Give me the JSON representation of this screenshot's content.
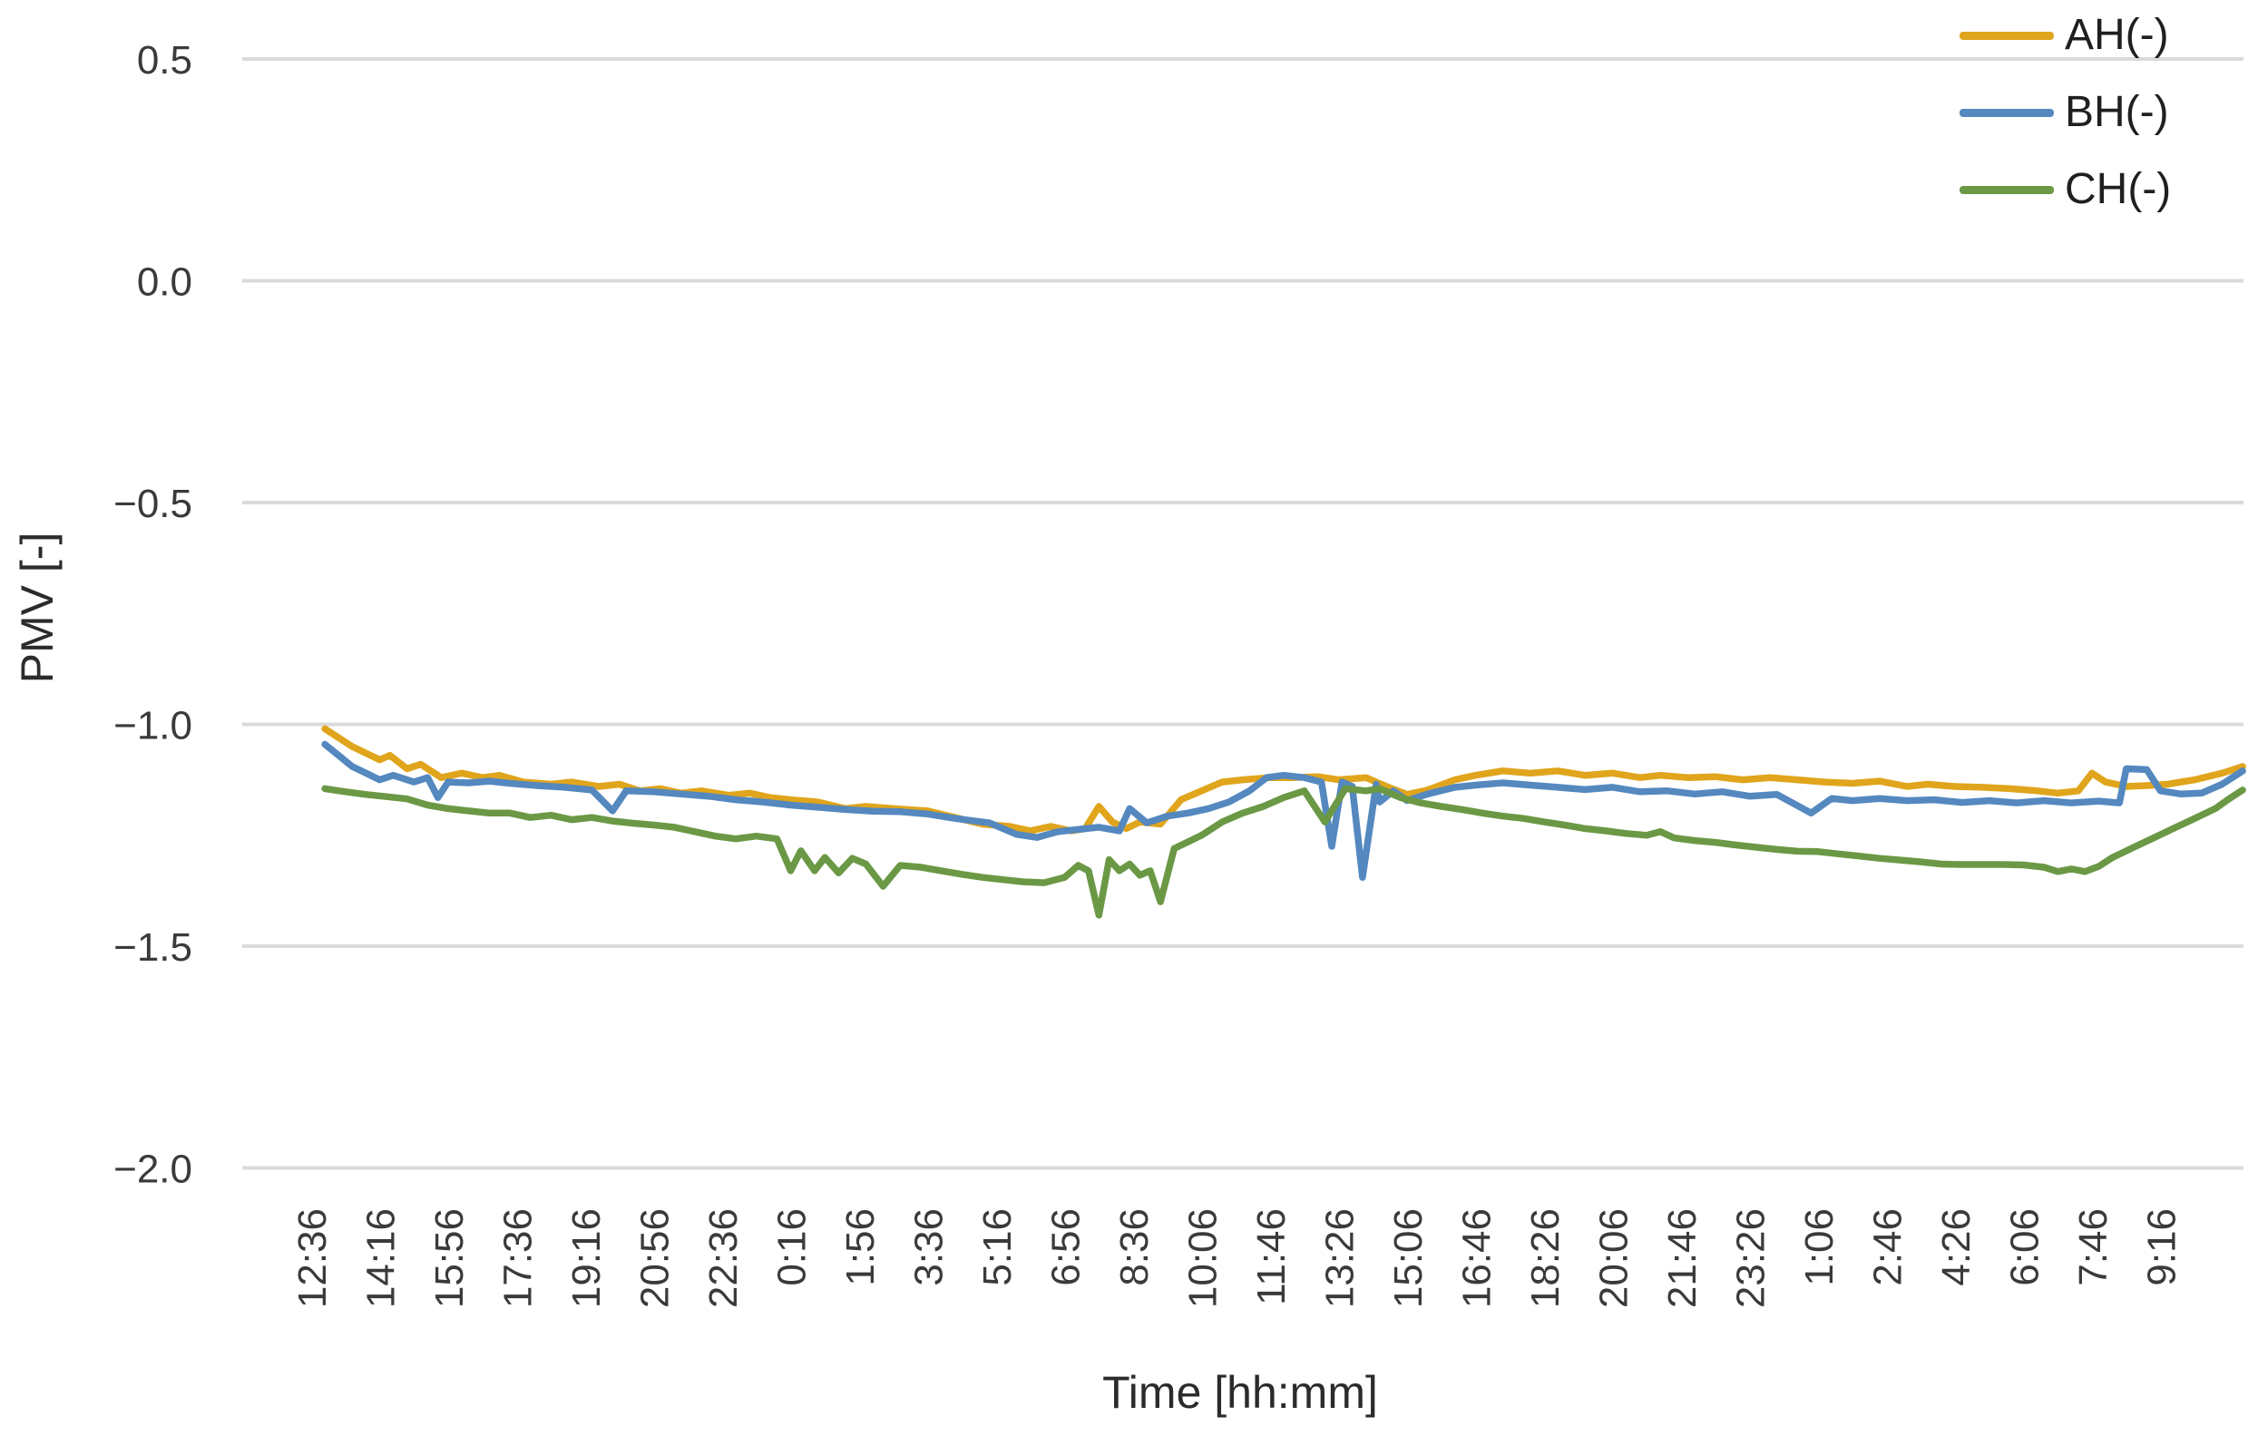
{
  "chart_data": {
    "type": "line",
    "title": "",
    "xlabel": "Time [hh:mm]",
    "ylabel": "PMV [-]",
    "ylim": [
      -2.0,
      0.5
    ],
    "grid": "horizontal-only",
    "gridline_color": "#DADADA",
    "legend_position": "top-right",
    "yticks": [
      {
        "value": 0.5,
        "label": "0.5"
      },
      {
        "value": 0.0,
        "label": "0.0"
      },
      {
        "value": -0.5,
        "label": "−0.5"
      },
      {
        "value": -1.0,
        "label": "−1.0"
      },
      {
        "value": -1.5,
        "label": "−1.5"
      },
      {
        "value": -2.0,
        "label": "−2.0"
      }
    ],
    "categories": [
      "12:36",
      "14:16",
      "15:56",
      "17:36",
      "19:16",
      "20:56",
      "22:36",
      "0:16",
      "1:56",
      "3:36",
      "5:16",
      "6:56",
      "8:36",
      "10:06",
      "11:46",
      "13:26",
      "15:06",
      "16:46",
      "18:26",
      "20:06",
      "21:46",
      "23:26",
      "1:06",
      "2:46",
      "4:26",
      "6:06",
      "7:46",
      "9:16"
    ],
    "series": [
      {
        "name": "AH(-)",
        "color": "#E0A51C",
        "points": [
          [
            0.2,
            -1.01
          ],
          [
            0.4,
            -1.03
          ],
          [
            0.6,
            -1.05
          ],
          [
            0.8,
            -1.065
          ],
          [
            1.0,
            -1.08
          ],
          [
            1.15,
            -1.07
          ],
          [
            1.4,
            -1.1
          ],
          [
            1.6,
            -1.09
          ],
          [
            1.9,
            -1.12
          ],
          [
            2.2,
            -1.11
          ],
          [
            2.5,
            -1.12
          ],
          [
            2.75,
            -1.115
          ],
          [
            3.1,
            -1.13
          ],
          [
            3.5,
            -1.135
          ],
          [
            3.8,
            -1.13
          ],
          [
            4.2,
            -1.14
          ],
          [
            4.5,
            -1.135
          ],
          [
            4.8,
            -1.15
          ],
          [
            5.1,
            -1.145
          ],
          [
            5.4,
            -1.155
          ],
          [
            5.7,
            -1.15
          ],
          [
            6.1,
            -1.16
          ],
          [
            6.4,
            -1.155
          ],
          [
            6.7,
            -1.165
          ],
          [
            7.0,
            -1.17
          ],
          [
            7.4,
            -1.175
          ],
          [
            7.8,
            -1.19
          ],
          [
            8.1,
            -1.185
          ],
          [
            8.5,
            -1.19
          ],
          [
            9.0,
            -1.195
          ],
          [
            9.4,
            -1.21
          ],
          [
            9.8,
            -1.225
          ],
          [
            10.2,
            -1.23
          ],
          [
            10.5,
            -1.24
          ],
          [
            10.8,
            -1.23
          ],
          [
            11.1,
            -1.24
          ],
          [
            11.3,
            -1.235
          ],
          [
            11.5,
            -1.185
          ],
          [
            11.7,
            -1.22
          ],
          [
            11.9,
            -1.235
          ],
          [
            12.1,
            -1.22
          ],
          [
            12.4,
            -1.225
          ],
          [
            12.7,
            -1.17
          ],
          [
            13.0,
            -1.15
          ],
          [
            13.3,
            -1.13
          ],
          [
            13.6,
            -1.125
          ],
          [
            14.0,
            -1.12
          ],
          [
            14.3,
            -1.12
          ],
          [
            14.7,
            -1.118
          ],
          [
            15.0,
            -1.125
          ],
          [
            15.4,
            -1.12
          ],
          [
            15.7,
            -1.14
          ],
          [
            16.0,
            -1.158
          ],
          [
            16.3,
            -1.148
          ],
          [
            16.7,
            -1.125
          ],
          [
            17.0,
            -1.115
          ],
          [
            17.4,
            -1.105
          ],
          [
            17.8,
            -1.11
          ],
          [
            18.2,
            -1.105
          ],
          [
            18.6,
            -1.115
          ],
          [
            19.0,
            -1.11
          ],
          [
            19.4,
            -1.12
          ],
          [
            19.7,
            -1.115
          ],
          [
            20.1,
            -1.12
          ],
          [
            20.5,
            -1.118
          ],
          [
            20.9,
            -1.125
          ],
          [
            21.3,
            -1.12
          ],
          [
            21.7,
            -1.125
          ],
          [
            22.1,
            -1.13
          ],
          [
            22.5,
            -1.133
          ],
          [
            22.9,
            -1.128
          ],
          [
            23.3,
            -1.14
          ],
          [
            23.6,
            -1.135
          ],
          [
            24.0,
            -1.14
          ],
          [
            24.4,
            -1.142
          ],
          [
            24.8,
            -1.145
          ],
          [
            25.2,
            -1.15
          ],
          [
            25.5,
            -1.155
          ],
          [
            25.8,
            -1.15
          ],
          [
            26.0,
            -1.11
          ],
          [
            26.2,
            -1.13
          ],
          [
            26.5,
            -1.14
          ],
          [
            26.8,
            -1.138
          ],
          [
            27.1,
            -1.135
          ],
          [
            27.5,
            -1.125
          ],
          [
            27.9,
            -1.11
          ],
          [
            28.2,
            -1.095
          ]
        ]
      },
      {
        "name": "BH(-)",
        "color": "#5488BF",
        "points": [
          [
            0.2,
            -1.045
          ],
          [
            0.4,
            -1.07
          ],
          [
            0.6,
            -1.095
          ],
          [
            0.8,
            -1.11
          ],
          [
            1.0,
            -1.125
          ],
          [
            1.2,
            -1.115
          ],
          [
            1.5,
            -1.13
          ],
          [
            1.7,
            -1.12
          ],
          [
            1.85,
            -1.165
          ],
          [
            2.0,
            -1.13
          ],
          [
            2.3,
            -1.132
          ],
          [
            2.6,
            -1.128
          ],
          [
            2.9,
            -1.133
          ],
          [
            3.3,
            -1.138
          ],
          [
            3.7,
            -1.142
          ],
          [
            4.1,
            -1.148
          ],
          [
            4.4,
            -1.195
          ],
          [
            4.6,
            -1.15
          ],
          [
            5.0,
            -1.152
          ],
          [
            5.4,
            -1.157
          ],
          [
            5.8,
            -1.162
          ],
          [
            6.2,
            -1.17
          ],
          [
            6.6,
            -1.175
          ],
          [
            7.0,
            -1.182
          ],
          [
            7.4,
            -1.187
          ],
          [
            7.8,
            -1.192
          ],
          [
            8.2,
            -1.196
          ],
          [
            8.6,
            -1.197
          ],
          [
            9.0,
            -1.202
          ],
          [
            9.4,
            -1.212
          ],
          [
            9.9,
            -1.222
          ],
          [
            10.3,
            -1.248
          ],
          [
            10.6,
            -1.255
          ],
          [
            10.9,
            -1.242
          ],
          [
            11.2,
            -1.237
          ],
          [
            11.5,
            -1.232
          ],
          [
            11.8,
            -1.24
          ],
          [
            11.95,
            -1.19
          ],
          [
            12.2,
            -1.222
          ],
          [
            12.5,
            -1.207
          ],
          [
            12.8,
            -1.2
          ],
          [
            13.1,
            -1.19
          ],
          [
            13.4,
            -1.175
          ],
          [
            13.7,
            -1.15
          ],
          [
            13.95,
            -1.12
          ],
          [
            14.2,
            -1.115
          ],
          [
            14.5,
            -1.12
          ],
          [
            14.75,
            -1.13
          ],
          [
            14.9,
            -1.275
          ],
          [
            15.05,
            -1.13
          ],
          [
            15.2,
            -1.14
          ],
          [
            15.35,
            -1.345
          ],
          [
            15.55,
            -1.135
          ],
          [
            15.6,
            -1.175
          ],
          [
            15.8,
            -1.15
          ],
          [
            16.0,
            -1.172
          ],
          [
            16.3,
            -1.157
          ],
          [
            16.7,
            -1.142
          ],
          [
            17.0,
            -1.137
          ],
          [
            17.4,
            -1.132
          ],
          [
            17.8,
            -1.137
          ],
          [
            18.2,
            -1.142
          ],
          [
            18.6,
            -1.147
          ],
          [
            19.0,
            -1.142
          ],
          [
            19.4,
            -1.152
          ],
          [
            19.8,
            -1.15
          ],
          [
            20.2,
            -1.157
          ],
          [
            20.6,
            -1.152
          ],
          [
            21.0,
            -1.162
          ],
          [
            21.4,
            -1.158
          ],
          [
            21.9,
            -1.2
          ],
          [
            22.2,
            -1.167
          ],
          [
            22.5,
            -1.172
          ],
          [
            22.9,
            -1.167
          ],
          [
            23.3,
            -1.172
          ],
          [
            23.7,
            -1.17
          ],
          [
            24.1,
            -1.176
          ],
          [
            24.5,
            -1.172
          ],
          [
            24.9,
            -1.177
          ],
          [
            25.3,
            -1.172
          ],
          [
            25.7,
            -1.177
          ],
          [
            26.1,
            -1.173
          ],
          [
            26.4,
            -1.177
          ],
          [
            26.5,
            -1.1
          ],
          [
            26.8,
            -1.102
          ],
          [
            27.0,
            -1.15
          ],
          [
            27.3,
            -1.157
          ],
          [
            27.6,
            -1.155
          ],
          [
            27.9,
            -1.135
          ],
          [
            28.1,
            -1.115
          ],
          [
            28.2,
            -1.105
          ]
        ]
      },
      {
        "name": "CH(-)",
        "color": "#6B9845",
        "points": [
          [
            0.2,
            -1.145
          ],
          [
            0.5,
            -1.152
          ],
          [
            0.8,
            -1.158
          ],
          [
            1.1,
            -1.163
          ],
          [
            1.4,
            -1.168
          ],
          [
            1.7,
            -1.182
          ],
          [
            2.0,
            -1.19
          ],
          [
            2.3,
            -1.195
          ],
          [
            2.6,
            -1.2
          ],
          [
            2.9,
            -1.2
          ],
          [
            3.2,
            -1.21
          ],
          [
            3.5,
            -1.205
          ],
          [
            3.8,
            -1.215
          ],
          [
            4.1,
            -1.21
          ],
          [
            4.4,
            -1.218
          ],
          [
            4.7,
            -1.223
          ],
          [
            5.0,
            -1.227
          ],
          [
            5.3,
            -1.232
          ],
          [
            5.6,
            -1.242
          ],
          [
            5.9,
            -1.252
          ],
          [
            6.2,
            -1.258
          ],
          [
            6.5,
            -1.252
          ],
          [
            6.8,
            -1.258
          ],
          [
            7.0,
            -1.33
          ],
          [
            7.15,
            -1.285
          ],
          [
            7.35,
            -1.33
          ],
          [
            7.5,
            -1.3
          ],
          [
            7.7,
            -1.335
          ],
          [
            7.9,
            -1.302
          ],
          [
            8.1,
            -1.315
          ],
          [
            8.35,
            -1.365
          ],
          [
            8.6,
            -1.318
          ],
          [
            8.9,
            -1.322
          ],
          [
            9.2,
            -1.33
          ],
          [
            9.5,
            -1.338
          ],
          [
            9.8,
            -1.345
          ],
          [
            10.1,
            -1.35
          ],
          [
            10.4,
            -1.355
          ],
          [
            10.7,
            -1.357
          ],
          [
            11.0,
            -1.345
          ],
          [
            11.2,
            -1.318
          ],
          [
            11.35,
            -1.33
          ],
          [
            11.5,
            -1.43
          ],
          [
            11.65,
            -1.305
          ],
          [
            11.8,
            -1.33
          ],
          [
            11.95,
            -1.315
          ],
          [
            12.1,
            -1.34
          ],
          [
            12.25,
            -1.33
          ],
          [
            12.4,
            -1.4
          ],
          [
            12.6,
            -1.28
          ],
          [
            12.8,
            -1.265
          ],
          [
            13.0,
            -1.25
          ],
          [
            13.3,
            -1.22
          ],
          [
            13.6,
            -1.2
          ],
          [
            13.9,
            -1.185
          ],
          [
            14.2,
            -1.165
          ],
          [
            14.5,
            -1.15
          ],
          [
            14.8,
            -1.22
          ],
          [
            15.1,
            -1.145
          ],
          [
            15.4,
            -1.15
          ],
          [
            15.6,
            -1.145
          ],
          [
            15.9,
            -1.165
          ],
          [
            16.2,
            -1.177
          ],
          [
            16.5,
            -1.185
          ],
          [
            16.8,
            -1.192
          ],
          [
            17.1,
            -1.2
          ],
          [
            17.4,
            -1.207
          ],
          [
            17.7,
            -1.212
          ],
          [
            18.0,
            -1.22
          ],
          [
            18.3,
            -1.227
          ],
          [
            18.6,
            -1.235
          ],
          [
            18.9,
            -1.24
          ],
          [
            19.2,
            -1.246
          ],
          [
            19.5,
            -1.25
          ],
          [
            19.7,
            -1.242
          ],
          [
            19.9,
            -1.256
          ],
          [
            20.2,
            -1.262
          ],
          [
            20.5,
            -1.266
          ],
          [
            20.8,
            -1.272
          ],
          [
            21.1,
            -1.277
          ],
          [
            21.4,
            -1.282
          ],
          [
            21.7,
            -1.286
          ],
          [
            22.0,
            -1.287
          ],
          [
            22.3,
            -1.292
          ],
          [
            22.6,
            -1.297
          ],
          [
            22.9,
            -1.302
          ],
          [
            23.2,
            -1.306
          ],
          [
            23.5,
            -1.31
          ],
          [
            23.8,
            -1.315
          ],
          [
            24.1,
            -1.316
          ],
          [
            24.4,
            -1.316
          ],
          [
            24.7,
            -1.316
          ],
          [
            25.0,
            -1.317
          ],
          [
            25.3,
            -1.322
          ],
          [
            25.5,
            -1.332
          ],
          [
            25.7,
            -1.326
          ],
          [
            25.9,
            -1.332
          ],
          [
            26.1,
            -1.32
          ],
          [
            26.3,
            -1.3
          ],
          [
            26.6,
            -1.278
          ],
          [
            26.9,
            -1.256
          ],
          [
            27.2,
            -1.234
          ],
          [
            27.5,
            -1.212
          ],
          [
            27.8,
            -1.19
          ],
          [
            28.0,
            -1.168
          ],
          [
            28.2,
            -1.148
          ]
        ]
      }
    ]
  }
}
